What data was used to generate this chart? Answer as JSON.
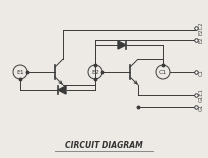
{
  "title": "CIRCUIT DIAGRAM",
  "title_fontsize": 5.5,
  "bg_color": "#ede9e4",
  "line_color": "#3a3a3a",
  "label_color": "#4a4a4a",
  "term_labels": [
    "E2C2",
    "E2",
    "C1",
    "G1E1",
    "G1"
  ],
  "node_labels": [
    "E1",
    "E2",
    "C1"
  ],
  "node_r": 7,
  "lw": 0.7
}
